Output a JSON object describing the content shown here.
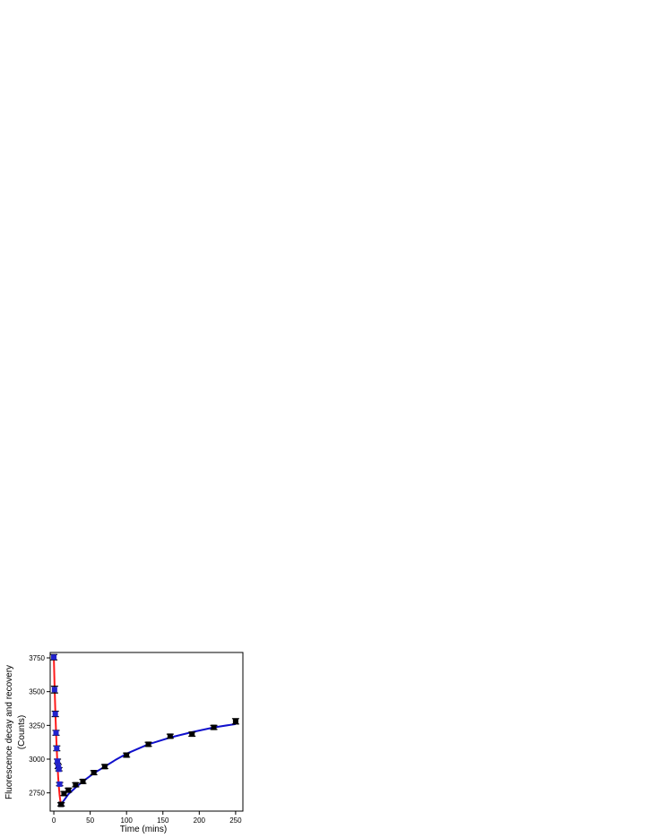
{
  "chart_data": {
    "type": "scatter",
    "title": "",
    "xlabel": "Time (mins)",
    "ylabel": "Fluorescence decay and recovery",
    "ylabel_line2": "(Counts)",
    "xlim": [
      -5,
      260
    ],
    "ylim": [
      2615,
      3790
    ],
    "xticks": [
      0,
      50,
      100,
      150,
      200,
      250
    ],
    "yticks": [
      2750,
      3000,
      3250,
      3500,
      3750
    ],
    "grid": false,
    "legend": "none",
    "colors": {
      "decay_points": "#2222cc",
      "recovery_points": "#000000",
      "decay_fit": "#ff1a1a",
      "recovery_fit": "#1010cc",
      "error_bars": "#000000"
    },
    "series": [
      {
        "role": "decay_points",
        "x": [
          0,
          1,
          2,
          3,
          4,
          5,
          6,
          7,
          8,
          10
        ],
        "y": [
          3755,
          3515,
          3335,
          3195,
          3080,
          2985,
          2945,
          2925,
          2815,
          2665
        ],
        "err": [
          20,
          25,
          20,
          18,
          18,
          15,
          15,
          12,
          12,
          12
        ]
      },
      {
        "role": "recovery_points",
        "x": [
          10,
          14,
          20,
          30,
          40,
          55,
          70,
          100,
          130,
          160,
          190,
          220,
          250
        ],
        "y": [
          2665,
          2745,
          2770,
          2810,
          2835,
          2900,
          2945,
          3030,
          3110,
          3170,
          3185,
          3235,
          3280
        ],
        "err": [
          12,
          15,
          15,
          15,
          15,
          15,
          15,
          15,
          15,
          15,
          15,
          15,
          20
        ]
      },
      {
        "role": "decay_fit",
        "x": [
          0,
          1,
          2,
          3,
          4,
          5,
          6,
          7,
          8,
          9,
          10
        ],
        "y": [
          3755,
          3545,
          3365,
          3210,
          3075,
          2960,
          2865,
          2790,
          2730,
          2690,
          2665
        ]
      },
      {
        "role": "recovery_fit",
        "x": [
          10,
          20,
          30,
          40,
          55,
          70,
          85,
          100,
          130,
          160,
          190,
          220,
          250
        ],
        "y": [
          2665,
          2740,
          2790,
          2835,
          2895,
          2945,
          2995,
          3040,
          3110,
          3160,
          3200,
          3235,
          3260
        ]
      }
    ]
  }
}
